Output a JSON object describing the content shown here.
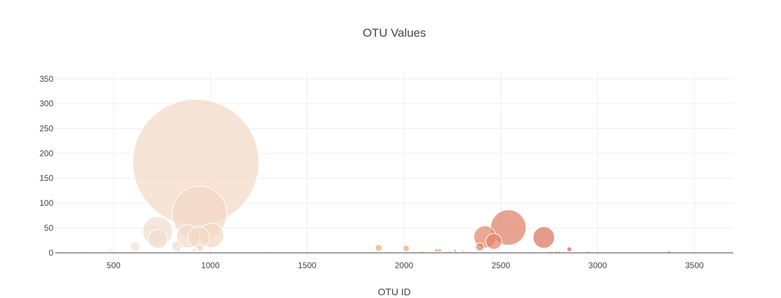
{
  "chart_data": {
    "type": "scatter",
    "title": "OTU Values",
    "xlabel": "OTU ID",
    "ylabel": "",
    "xlim": [
      200,
      3700
    ],
    "ylim": [
      -10,
      365
    ],
    "xticks": [
      500,
      1000,
      1500,
      2000,
      2500,
      3000,
      3500
    ],
    "yticks": [
      0,
      50,
      100,
      150,
      200,
      250,
      300,
      350
    ],
    "grid": true,
    "legend": "none",
    "marker_size_scale": "value",
    "colorscale": "otu-id",
    "points": [
      {
        "x": 925,
        "y": 182
      },
      {
        "x": 944,
        "y": 79
      },
      {
        "x": 2539,
        "y": 51
      },
      {
        "x": 728,
        "y": 43
      },
      {
        "x": 1005,
        "y": 35
      },
      {
        "x": 2418,
        "y": 32
      },
      {
        "x": 885,
        "y": 33
      },
      {
        "x": 2722,
        "y": 31
      },
      {
        "x": 940,
        "y": 31
      },
      {
        "x": 730,
        "y": 28
      },
      {
        "x": 2464,
        "y": 23
      },
      {
        "x": 612,
        "y": 13
      },
      {
        "x": 2392,
        "y": 12
      },
      {
        "x": 826,
        "y": 14
      },
      {
        "x": 947,
        "y": 10
      },
      {
        "x": 1869,
        "y": 10
      },
      {
        "x": 2011,
        "y": 9
      },
      {
        "x": 2854,
        "y": 7
      },
      {
        "x": 833,
        "y": 6
      },
      {
        "x": 482,
        "y": 5
      },
      {
        "x": 917,
        "y": 5
      },
      {
        "x": 2167,
        "y": 5
      },
      {
        "x": 2184,
        "y": 5
      },
      {
        "x": 2264,
        "y": 4
      },
      {
        "x": 2304,
        "y": 3
      },
      {
        "x": 3368,
        "y": 2
      },
      {
        "x": 2096,
        "y": 2
      },
      {
        "x": 1916,
        "y": 1
      },
      {
        "x": 2085,
        "y": 1
      },
      {
        "x": 2237,
        "y": 1
      },
      {
        "x": 2757,
        "y": 1
      },
      {
        "x": 2786,
        "y": 1
      },
      {
        "x": 2803,
        "y": 1
      },
      {
        "x": 2951,
        "y": 1
      },
      {
        "x": 1315,
        "y": 1
      },
      {
        "x": 352,
        "y": 1
      },
      {
        "x": 779,
        "y": 1
      },
      {
        "x": 1047,
        "y": 1
      }
    ]
  }
}
